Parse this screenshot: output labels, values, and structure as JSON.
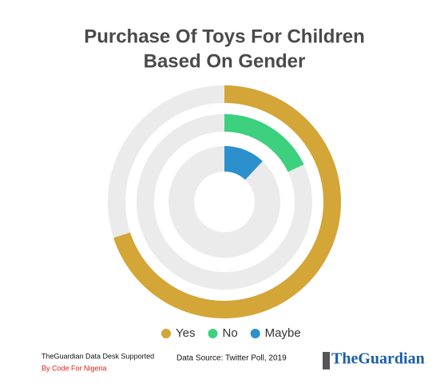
{
  "chart_data": {
    "type": "radial",
    "title": [
      "Purchase Of Toys For Children",
      "Based On Gender"
    ],
    "series": [
      {
        "name": "Yes",
        "color": "#d4a537",
        "value": 70
      },
      {
        "name": "No",
        "color": "#3dd07f",
        "value": 18
      },
      {
        "name": "Maybe",
        "color": "#2b90cc",
        "value": 12
      }
    ],
    "ylim": [
      0,
      100
    ],
    "track_color": "#ebebeb",
    "credit": [
      "TheGuardian Data Desk Supported",
      "By Code For Nigeria"
    ],
    "source": "Data Source: Twitter Poll, 2019",
    "logo": "TheGuardian"
  }
}
